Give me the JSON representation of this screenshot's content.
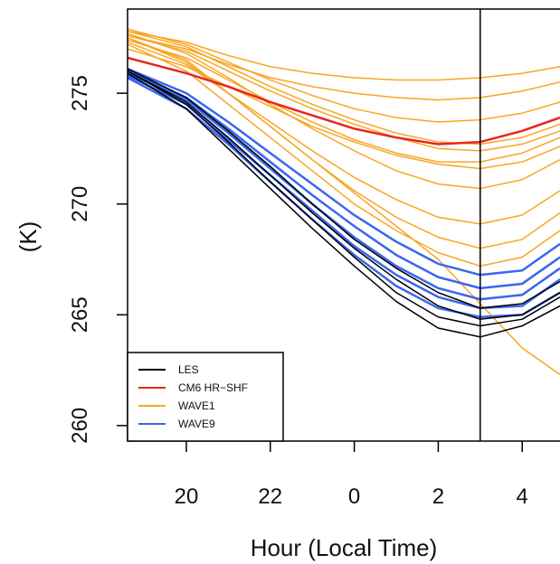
{
  "chart_data": {
    "type": "line",
    "ylabel": "(K)",
    "xlabel": "Hour (Local Time)",
    "x": [
      18.6,
      20,
      21,
      22,
      23,
      24,
      25,
      26,
      27,
      28,
      28.9
    ],
    "xlim": [
      18.6,
      28.9
    ],
    "xticks": [
      20,
      22,
      {
        "value": 24,
        "label": "0"
      },
      {
        "value": 26,
        "label": "2"
      },
      {
        "value": 28,
        "label": "4"
      }
    ],
    "ylim": [
      259.3,
      278.8
    ],
    "yticks": [
      260,
      265,
      270,
      275
    ],
    "vline": 27,
    "legend": "bottom-left",
    "series": [
      {
        "name": "LES",
        "color": "#000000",
        "lines": [
          [
            276.0,
            274.5,
            272.8,
            271.0,
            269.3,
            267.6,
            266.0,
            264.9,
            264.5,
            264.8,
            265.8
          ],
          [
            275.9,
            274.3,
            272.5,
            270.7,
            268.9,
            267.2,
            265.6,
            264.4,
            264.0,
            264.5,
            265.4
          ],
          [
            276.1,
            274.8,
            273.3,
            271.7,
            270.0,
            268.4,
            267.1,
            266.0,
            265.3,
            265.5,
            266.5
          ],
          [
            276.0,
            274.6,
            273.0,
            271.3,
            269.6,
            268.0,
            266.6,
            265.4,
            264.8,
            265.0,
            266.0
          ]
        ]
      },
      {
        "name": "CM6 HR−SHF",
        "color": "#e8261c",
        "lines": [
          [
            276.6,
            275.9,
            275.3,
            274.6,
            274.0,
            273.4,
            273.0,
            272.7,
            272.8,
            273.3,
            273.9
          ]
        ]
      },
      {
        "name": "WAVE1",
        "color": "#f8a623",
        "lines": [
          [
            277.8,
            277.3,
            276.7,
            276.2,
            275.9,
            275.7,
            275.6,
            275.6,
            275.7,
            275.9,
            276.2
          ],
          [
            277.6,
            277.0,
            276.3,
            275.7,
            275.3,
            275.0,
            274.8,
            274.7,
            274.8,
            275.1,
            275.5
          ],
          [
            277.9,
            277.2,
            276.4,
            275.6,
            274.9,
            274.3,
            273.9,
            273.7,
            273.8,
            274.1,
            274.6
          ],
          [
            277.4,
            276.6,
            275.6,
            274.6,
            273.7,
            272.9,
            272.3,
            271.9,
            271.9,
            272.3,
            273.0
          ],
          [
            277.7,
            276.8,
            275.7,
            274.5,
            273.4,
            272.4,
            271.5,
            270.9,
            270.7,
            271.1,
            272.0
          ],
          [
            277.3,
            276.3,
            275.0,
            273.7,
            272.4,
            271.2,
            270.2,
            269.4,
            269.1,
            269.5,
            270.6
          ],
          [
            277.5,
            276.4,
            275.0,
            273.5,
            272.0,
            270.6,
            269.4,
            268.5,
            268.0,
            268.4,
            269.6
          ],
          [
            277.2,
            276.0,
            274.5,
            273.0,
            271.5,
            270.0,
            268.8,
            267.8,
            267.2,
            267.6,
            268.8
          ],
          [
            277.8,
            277.1,
            276.2,
            275.3,
            274.5,
            273.8,
            273.2,
            272.8,
            272.7,
            273.0,
            273.6
          ],
          [
            277.5,
            276.5,
            275.0,
            273.5,
            272.0,
            270.5,
            269.0,
            267.5,
            265.5,
            263.5,
            262.3
          ],
          [
            277.0,
            276.2,
            275.3,
            274.4,
            273.5,
            272.8,
            272.2,
            271.8,
            271.6,
            271.9,
            272.6
          ],
          [
            277.6,
            276.9,
            276.0,
            275.1,
            274.3,
            273.6,
            273.0,
            272.5,
            272.4,
            272.7,
            273.3
          ]
        ]
      },
      {
        "name": "WAVE9",
        "color": "#3a66f0",
        "lines": [
          [
            276.1,
            275.0,
            273.7,
            272.3,
            270.9,
            269.5,
            268.3,
            267.3,
            266.8,
            267.0,
            268.2
          ],
          [
            276.0,
            274.8,
            273.4,
            271.9,
            270.4,
            269.0,
            267.7,
            266.7,
            266.2,
            266.4,
            267.6
          ],
          [
            275.9,
            274.7,
            273.2,
            271.6,
            270.0,
            268.5,
            267.2,
            266.2,
            265.7,
            265.9,
            267.1
          ],
          [
            275.8,
            274.5,
            272.9,
            271.3,
            269.7,
            268.1,
            266.8,
            265.8,
            265.3,
            265.4,
            266.6
          ],
          [
            275.7,
            274.3,
            272.7,
            271.0,
            269.3,
            267.7,
            266.3,
            265.3,
            264.9,
            265.0,
            266.0
          ]
        ]
      }
    ]
  }
}
